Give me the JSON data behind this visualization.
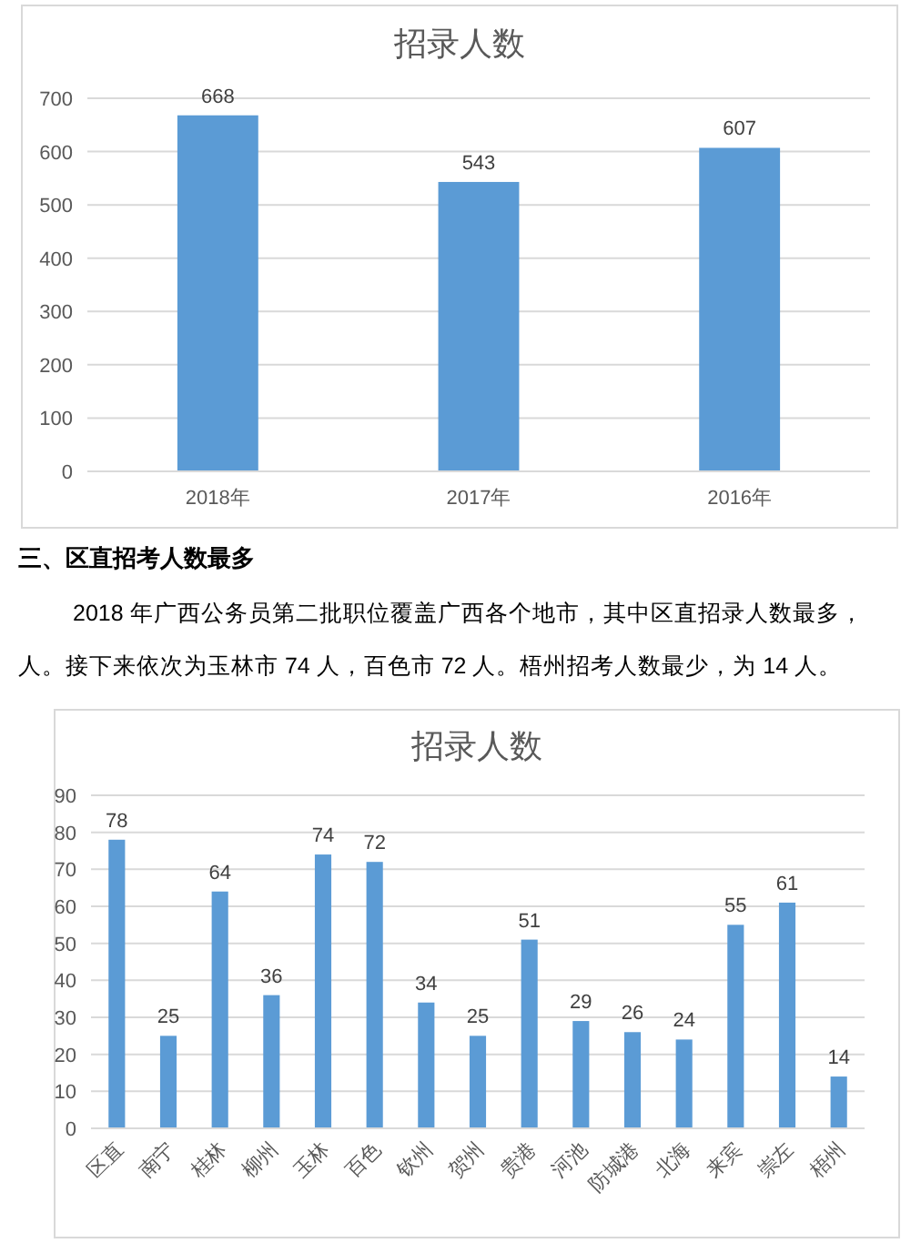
{
  "chart_data": [
    {
      "type": "bar",
      "title": "招录人数",
      "categories": [
        "2018年",
        "2017年",
        "2016年"
      ],
      "values": [
        668,
        543,
        607
      ],
      "color": "#5b9bd5",
      "ylim": [
        0,
        700
      ],
      "yticks": [
        0,
        100,
        200,
        300,
        400,
        500,
        600,
        700
      ],
      "grid": "y",
      "data_labels": true
    },
    {
      "type": "bar",
      "title": "招录人数",
      "categories": [
        "区直",
        "南宁",
        "桂林",
        "柳州",
        "玉林",
        "百色",
        "钦州",
        "贺州",
        "贵港",
        "河池",
        "防城港",
        "北海",
        "来宾",
        "崇左",
        "梧州"
      ],
      "values": [
        78,
        25,
        64,
        36,
        74,
        72,
        34,
        25,
        51,
        29,
        26,
        24,
        55,
        61,
        14
      ],
      "color": "#5b9bd5",
      "ylim": [
        0,
        90
      ],
      "yticks": [
        0,
        10,
        20,
        30,
        40,
        50,
        60,
        70,
        80,
        90
      ],
      "grid": "y",
      "data_labels": true,
      "annotations": [
        "三、区直招考人数最多",
        "2018 年广西公务员第二批职位覆盖广西各个地市，其中区直招录人数最多，",
        "人。接下来依次为玉林市 74 人，百色市 72 人。梧州招考人数最少，为 14 人。"
      ]
    }
  ]
}
